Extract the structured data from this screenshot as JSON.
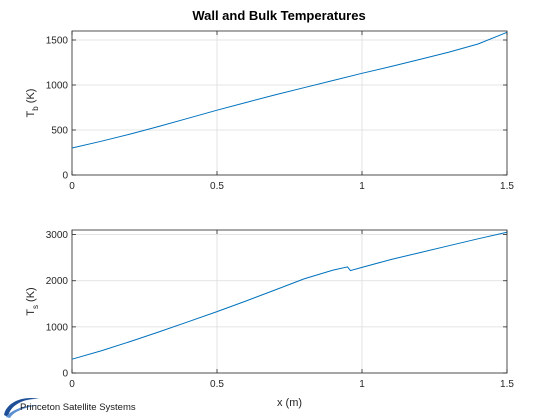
{
  "figure_title": "Wall and Bulk Temperatures",
  "logo": {
    "text": "Princeton Satellite Systems"
  },
  "chart_data": [
    {
      "type": "line",
      "title": "Wall and Bulk Temperatures",
      "xlabel": "",
      "ylabel": {
        "main": "T",
        "sub": "b",
        "unit": " (K)"
      },
      "xlim": [
        0,
        1.5
      ],
      "ylim": [
        0,
        1600
      ],
      "xticks": [
        0,
        0.5,
        1,
        1.5
      ],
      "xtick_labels": [
        "0",
        "0.5",
        "1",
        "1.5"
      ],
      "yticks": [
        0,
        500,
        1000,
        1500
      ],
      "ytick_labels": [
        "0",
        "500",
        "1000",
        "1500"
      ],
      "grid": true,
      "line_color": "#0072bd",
      "series": [
        {
          "x": [
            0,
            0.1,
            0.2,
            0.3,
            0.4,
            0.5,
            0.6,
            0.7,
            0.8,
            0.9,
            1.0,
            1.1,
            1.2,
            1.3,
            1.4,
            1.5
          ],
          "y": [
            300,
            375,
            455,
            540,
            630,
            720,
            805,
            890,
            970,
            1050,
            1130,
            1205,
            1285,
            1365,
            1455,
            1585
          ]
        }
      ]
    },
    {
      "type": "line",
      "title": "",
      "xlabel": "x (m)",
      "ylabel": {
        "main": "T",
        "sub": "s",
        "unit": " (K)"
      },
      "xlim": [
        0,
        1.5
      ],
      "ylim": [
        0,
        3100
      ],
      "xticks": [
        0,
        0.5,
        1,
        1.5
      ],
      "xtick_labels": [
        "0",
        "0.5",
        "1",
        "1.5"
      ],
      "yticks": [
        0,
        1000,
        2000,
        3000
      ],
      "ytick_labels": [
        "0",
        "1000",
        "2000",
        "3000"
      ],
      "grid": true,
      "line_color": "#0072bd",
      "series": [
        {
          "x": [
            0,
            0.1,
            0.2,
            0.3,
            0.4,
            0.5,
            0.6,
            0.7,
            0.8,
            0.9,
            0.95,
            0.96,
            1.0,
            1.1,
            1.2,
            1.3,
            1.4,
            1.5
          ],
          "y": [
            300,
            480,
            680,
            890,
            1110,
            1330,
            1560,
            1800,
            2040,
            2230,
            2300,
            2220,
            2290,
            2460,
            2610,
            2760,
            2910,
            3050
          ]
        }
      ]
    }
  ]
}
